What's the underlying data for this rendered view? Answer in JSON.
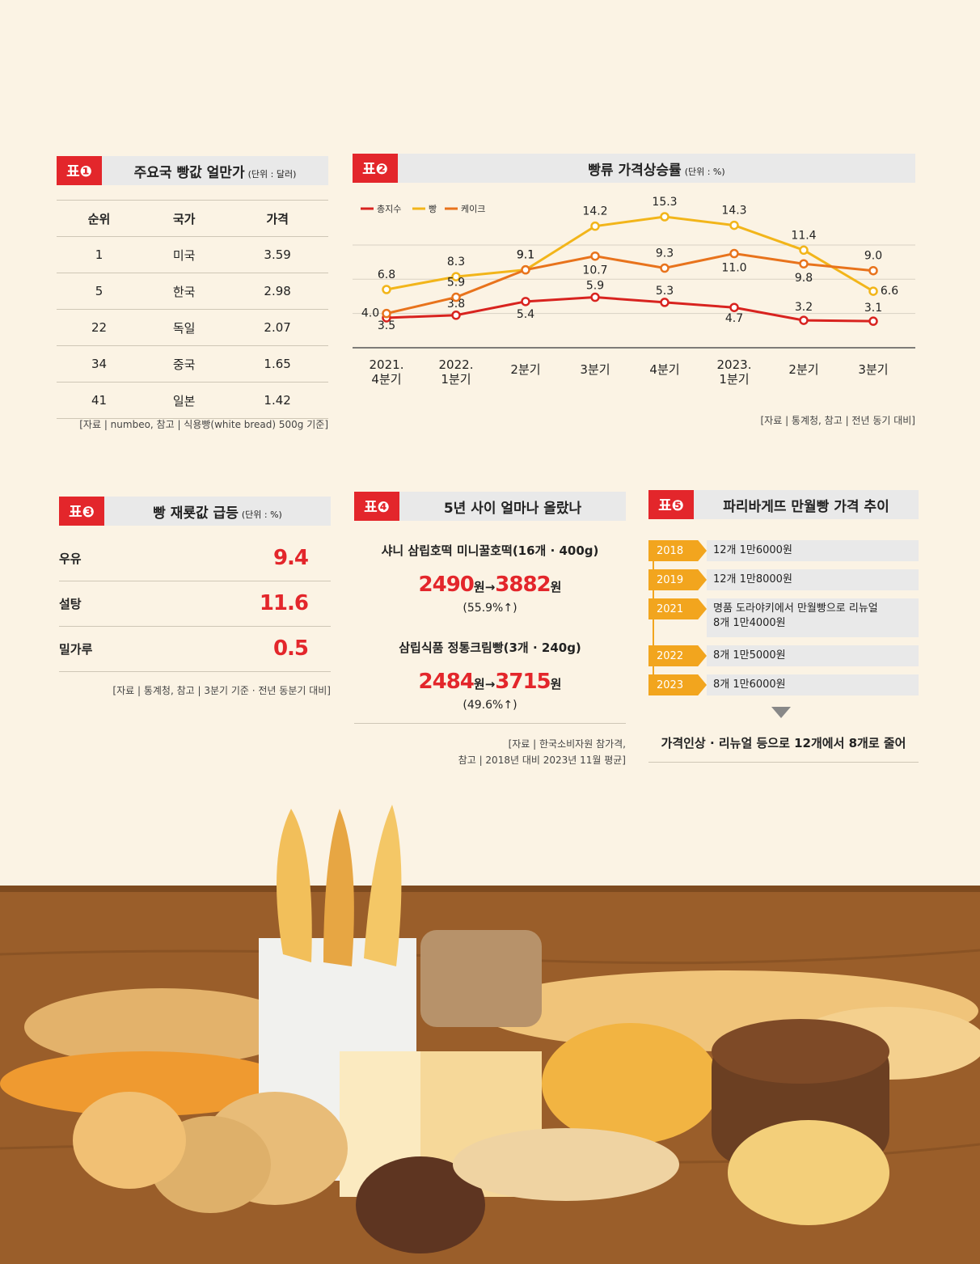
{
  "table1": {
    "badge": "표❶",
    "title": "주요국 빵값 얼만가",
    "unit": "(단위 : 달러)",
    "headers": [
      "순위",
      "국가",
      "가격"
    ],
    "rows": [
      {
        "rank": "1",
        "country": "미국",
        "price": "3.59"
      },
      {
        "rank": "5",
        "country": "한국",
        "price": "2.98"
      },
      {
        "rank": "22",
        "country": "독일",
        "price": "2.07"
      },
      {
        "rank": "34",
        "country": "중국",
        "price": "1.65"
      },
      {
        "rank": "41",
        "country": "일본",
        "price": "1.42"
      }
    ],
    "source": "[자료 | numbeo, 참고 | 식용빵(white bread) 500g 기준]"
  },
  "table2": {
    "badge": "표❷",
    "title": "빵류 가격상승률",
    "unit": "(단위 : %)",
    "source": "[자료 | 통계청, 참고 | 전년 동기 대비]"
  },
  "chart_data": {
    "type": "line",
    "categories": [
      "2021.\n4분기",
      "2022.\n1분기",
      "2분기",
      "3분기",
      "4분기",
      "2023.\n1분기",
      "2분기",
      "3분기"
    ],
    "series": [
      {
        "name": "총지수",
        "color": "#d8231f",
        "values": [
          3.5,
          3.8,
          5.4,
          5.9,
          5.3,
          4.7,
          3.2,
          3.1
        ]
      },
      {
        "name": "빵",
        "color": "#f2b51a",
        "values": [
          6.8,
          8.3,
          9.1,
          14.2,
          15.3,
          14.3,
          11.4,
          6.6
        ]
      },
      {
        "name": "케이크",
        "color": "#e8731c",
        "values": [
          4.0,
          5.9,
          9.1,
          10.7,
          9.3,
          11.0,
          9.8,
          9.0
        ]
      }
    ],
    "title": "빵류 가격상승률",
    "ylim": [
      0,
      17
    ],
    "grid": true,
    "legend": "top-left"
  },
  "table3": {
    "badge": "표❸",
    "title": "빵 재룟값 급등",
    "unit": "(단위 : %)",
    "rows": [
      {
        "label": "우유",
        "value": "9.4"
      },
      {
        "label": "설탕",
        "value": "11.6"
      },
      {
        "label": "밀가루",
        "value": "0.5"
      }
    ],
    "source": "[자료 | 통계청, 참고 | 3분기 기준 · 전년 동분기 대비]"
  },
  "table4": {
    "badge": "표❹",
    "title": "5년 사이 얼마나 올랐나",
    "products": [
      {
        "name": "샤니 삼립호떡 미니꿀호떡(16개 · 400g)",
        "from": "2490",
        "to": "3882",
        "unit": "원",
        "arrow": "→",
        "pct": "(55.9%↑)"
      },
      {
        "name": "삼립식품 정통크림빵(3개 · 240g)",
        "from": "2484",
        "to": "3715",
        "unit": "원",
        "arrow": "→",
        "pct": "(49.6%↑)"
      }
    ],
    "source1": "[자료 | 한국소비자원 참가격,",
    "source2": "참고 | 2018년 대비 2023년 11월 평균]"
  },
  "table5": {
    "badge": "표❺",
    "title": "파리바게뜨 만월빵 가격 추이",
    "timeline": [
      {
        "year": "2018",
        "desc": "12개 1만6000원"
      },
      {
        "year": "2019",
        "desc": "12개 1만8000원"
      },
      {
        "year": "2021",
        "desc": "명품 도라야키에서 만월빵으로 리뉴얼\n8개 1만4000원"
      },
      {
        "year": "2022",
        "desc": "8개 1만5000원"
      },
      {
        "year": "2023",
        "desc": "8개 1만6000원"
      }
    ],
    "conclusion": "가격인상 · 리뉴얼 등으로 12개에서 8개로 줄어"
  },
  "colors": {
    "accent": "#e3262b",
    "bg": "#fbf3e4",
    "table_bar": "#e9e9e9",
    "timeline": "#f2a51e"
  }
}
